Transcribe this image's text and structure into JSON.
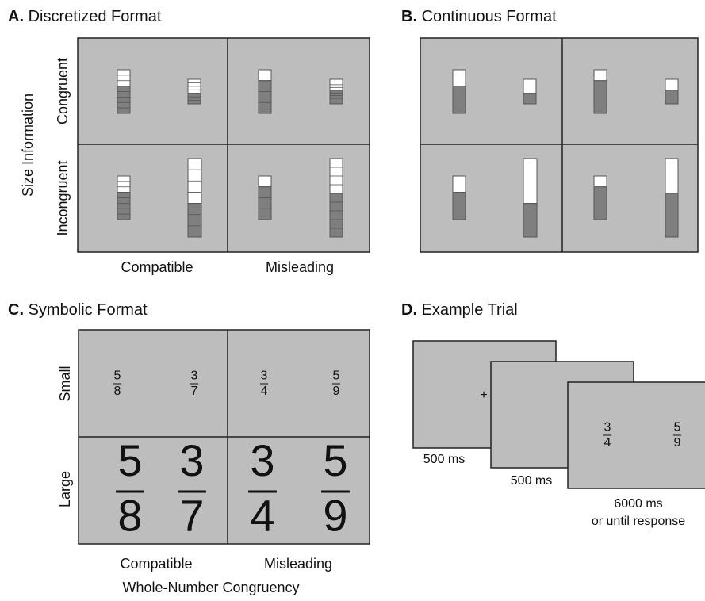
{
  "panels": {
    "a": {
      "label": "A.",
      "title": "Discretized Format",
      "y_axis": "Size Information",
      "rows": [
        "Congruent",
        "Incongruent"
      ],
      "columns": [
        "Compatible",
        "Misleading"
      ]
    },
    "b": {
      "label": "B.",
      "title": "Continuous Format"
    },
    "c": {
      "label": "C.",
      "title": "Symbolic Format",
      "rows": [
        "Small",
        "Large"
      ],
      "columns": [
        "Compatible",
        "Misleading"
      ],
      "x_axis": "Whole-Number Congruency",
      "small": [
        {
          "n": 5,
          "d": 8
        },
        {
          "n": 3,
          "d": 7
        },
        {
          "n": 3,
          "d": 4
        },
        {
          "n": 5,
          "d": 9
        }
      ],
      "large": [
        {
          "n": 5,
          "d": 8
        },
        {
          "n": 3,
          "d": 7
        },
        {
          "n": 3,
          "d": 4
        },
        {
          "n": 5,
          "d": 9
        }
      ]
    },
    "d": {
      "label": "D.",
      "title": "Example Trial",
      "fixation": "+",
      "fractions": [
        {
          "n": 3,
          "d": 4
        },
        {
          "n": 5,
          "d": 9
        }
      ],
      "durations": [
        "500 ms",
        "500 ms",
        "6000 ms",
        "or until response"
      ]
    }
  }
}
